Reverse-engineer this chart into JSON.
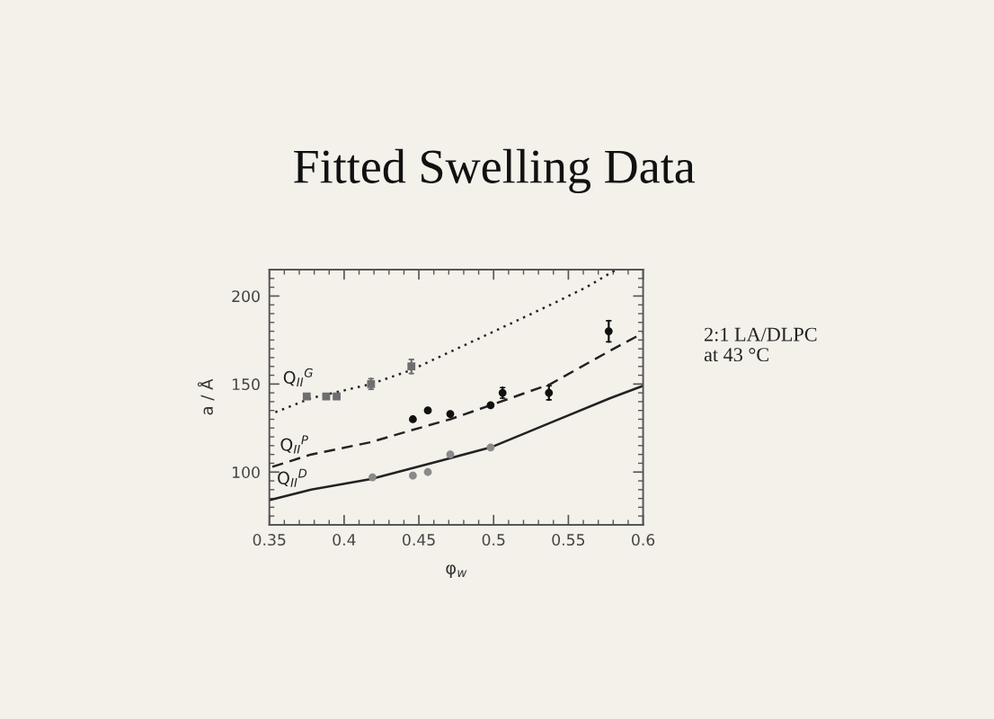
{
  "chart_data": {
    "type": "scatter",
    "title": "Fitted Swelling Data",
    "xlabel": "φ$_{w}$",
    "ylabel": "a / Å",
    "annotations": [
      "2:1 LA/DLPC\nat 43 °C"
    ],
    "xlim": [
      0.35,
      0.6
    ],
    "xticks": [
      0.35,
      0.4,
      0.45,
      0.5,
      0.55,
      0.6
    ],
    "ylim": [
      70,
      215
    ],
    "yticks": [
      100,
      150,
      200
    ],
    "series": [
      {
        "marker": "square",
        "color": "#6e6e6e",
        "x": [
          0.375,
          0.388,
          0.395,
          0.418,
          0.445
        ],
        "values": [
          143,
          143,
          143,
          150,
          160
        ],
        "errors": [
          null,
          null,
          null,
          3,
          4
        ]
      },
      {
        "marker": "circle",
        "color": "#111111",
        "x": [
          0.446,
          0.456,
          0.471,
          0.498,
          0.506,
          0.537,
          0.577
        ],
        "values": [
          130,
          135,
          133,
          138,
          145,
          145,
          180
        ],
        "errors": [
          null,
          null,
          null,
          null,
          3,
          4,
          6
        ]
      },
      {
        "marker": "circle",
        "color": "#8a8a8a",
        "x": [
          0.419,
          0.446,
          0.456,
          0.471,
          0.498
        ],
        "values": [
          97,
          98,
          100,
          110,
          114
        ]
      },
      {
        "type": "line",
        "name": "Q$_{II}$$^{G}$",
        "line_style": "dotted",
        "color": "#222222",
        "x": [
          0.354,
          0.378,
          0.418,
          0.445,
          0.498,
          0.538,
          0.562,
          0.582
        ],
        "values": [
          134,
          142,
          150,
          158,
          179,
          195,
          205,
          215
        ]
      },
      {
        "type": "line",
        "name": "Q$_{II}$$^{P}$",
        "line_style": "dashed",
        "color": "#222222",
        "x": [
          0.352,
          0.378,
          0.418,
          0.446,
          0.471,
          0.498,
          0.538,
          0.578,
          0.6
        ],
        "values": [
          103,
          110,
          117,
          124,
          130,
          138,
          150,
          169,
          179
        ]
      },
      {
        "type": "line",
        "name": "Q$_{II}$$^{D}$",
        "line_style": "solid",
        "color": "#222222",
        "x": [
          0.35,
          0.378,
          0.418,
          0.458,
          0.498,
          0.538,
          0.578,
          0.6
        ],
        "values": [
          84,
          90,
          96,
          105,
          114,
          128,
          142,
          149
        ]
      }
    ]
  }
}
